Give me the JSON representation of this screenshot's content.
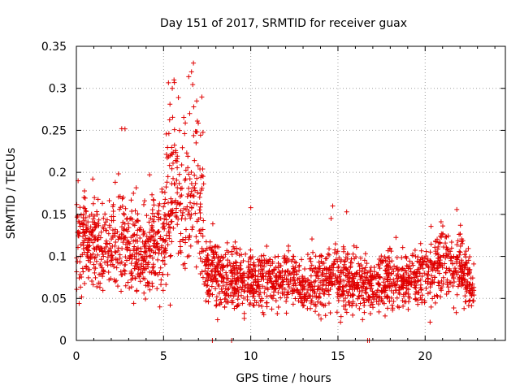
{
  "chart_data": {
    "type": "scatter",
    "title": "Day 151 of 2017, SRMTID for receiver guax",
    "xlabel": "GPS time / hours",
    "ylabel": "SRMTID / TECUs",
    "xlim": [
      0,
      24.6
    ],
    "ylim": [
      0,
      0.35
    ],
    "xticks": [
      0,
      5,
      10,
      15,
      20
    ],
    "xtick_labels": [
      "0",
      "5",
      "10",
      "15",
      "20"
    ],
    "yticks": [
      0,
      0.05,
      0.1,
      0.15,
      0.2,
      0.25,
      0.3,
      0.35
    ],
    "ytick_labels": [
      "0",
      "0.05",
      "0.1",
      "0.15",
      "0.2",
      "0.25",
      "0.3",
      "0.35"
    ],
    "grid": true,
    "marker": "plus",
    "color": "#e00000",
    "series_profile": {
      "name": "SRMTID",
      "x_range": [
        0,
        22.8
      ],
      "mean_profile": [
        [
          0,
          0.115
        ],
        [
          1,
          0.12
        ],
        [
          2,
          0.11
        ],
        [
          3,
          0.115
        ],
        [
          4,
          0.1
        ],
        [
          5,
          0.13
        ],
        [
          5.5,
          0.16
        ],
        [
          6,
          0.14
        ],
        [
          7,
          0.15
        ],
        [
          7.5,
          0.08
        ],
        [
          10,
          0.07
        ],
        [
          12,
          0.075
        ],
        [
          13,
          0.06
        ],
        [
          15,
          0.08
        ],
        [
          16,
          0.07
        ],
        [
          17,
          0.065
        ],
        [
          18,
          0.075
        ],
        [
          19,
          0.07
        ],
        [
          20,
          0.08
        ],
        [
          21,
          0.095
        ],
        [
          22,
          0.085
        ],
        [
          22.8,
          0.06
        ]
      ],
      "spread": 0.03,
      "peaks": [
        [
          5.6,
          0.31
        ],
        [
          5.5,
          0.3
        ],
        [
          6.9,
          0.285
        ],
        [
          2.6,
          0.252
        ],
        [
          6.5,
          0.27
        ],
        [
          0.1,
          0.19
        ],
        [
          14.7,
          0.16
        ],
        [
          10,
          0.158
        ],
        [
          15.5,
          0.153
        ]
      ],
      "zero_points": [
        7.8,
        8.9,
        16.7,
        16.8
      ]
    }
  }
}
